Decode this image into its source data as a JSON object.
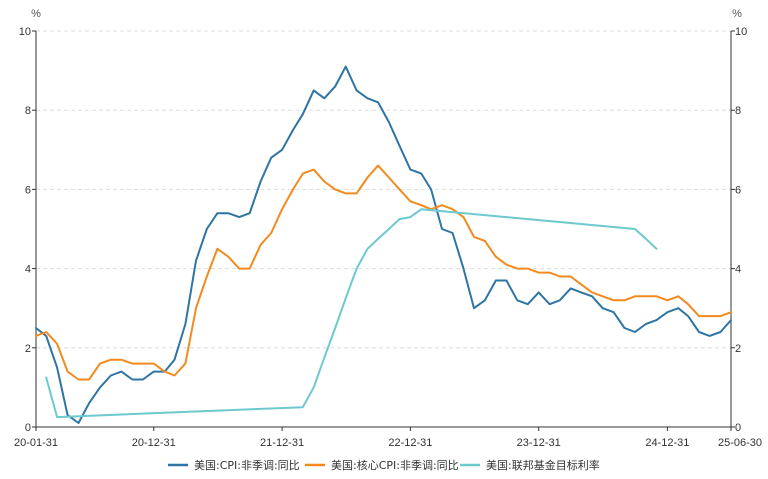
{
  "chart_data": {
    "type": "line",
    "title": "",
    "left_unit": "%",
    "right_unit": "%",
    "ylim": [
      0,
      10
    ],
    "y_ticks": [
      0,
      2,
      4,
      6,
      8,
      10
    ],
    "grid": "horizontal dashed",
    "legend_position": "bottom",
    "x_tick_labels": [
      "20-01-31",
      "20-12-31",
      "21-12-31",
      "22-12-31",
      "23-12-31",
      "24-12-31",
      "25-06-30"
    ],
    "x_tick_dates": [
      "2020-01-31",
      "2020-12-31",
      "2021-12-31",
      "2022-12-31",
      "2023-12-31",
      "2024-12-31",
      "2025-06-30"
    ],
    "series": [
      {
        "name": "美国:CPI:非季调:同比",
        "color": "#2e75a3",
        "points": [
          [
            "2020-01-31",
            2.5
          ],
          [
            "2020-02-29",
            2.3
          ],
          [
            "2020-03-31",
            1.5
          ],
          [
            "2020-04-30",
            0.3
          ],
          [
            "2020-05-31",
            0.1
          ],
          [
            "2020-06-30",
            0.6
          ],
          [
            "2020-07-31",
            1.0
          ],
          [
            "2020-08-31",
            1.3
          ],
          [
            "2020-09-30",
            1.4
          ],
          [
            "2020-10-31",
            1.2
          ],
          [
            "2020-11-30",
            1.2
          ],
          [
            "2020-12-31",
            1.4
          ],
          [
            "2021-01-31",
            1.4
          ],
          [
            "2021-02-28",
            1.7
          ],
          [
            "2021-03-31",
            2.6
          ],
          [
            "2021-04-30",
            4.2
          ],
          [
            "2021-05-31",
            5.0
          ],
          [
            "2021-06-30",
            5.4
          ],
          [
            "2021-07-31",
            5.4
          ],
          [
            "2021-08-31",
            5.3
          ],
          [
            "2021-09-30",
            5.4
          ],
          [
            "2021-10-31",
            6.2
          ],
          [
            "2021-11-30",
            6.8
          ],
          [
            "2021-12-31",
            7.0
          ],
          [
            "2022-01-31",
            7.5
          ],
          [
            "2022-02-28",
            7.9
          ],
          [
            "2022-03-31",
            8.5
          ],
          [
            "2022-04-30",
            8.3
          ],
          [
            "2022-05-31",
            8.6
          ],
          [
            "2022-06-30",
            9.1
          ],
          [
            "2022-07-31",
            8.5
          ],
          [
            "2022-08-31",
            8.3
          ],
          [
            "2022-09-30",
            8.2
          ],
          [
            "2022-10-31",
            7.7
          ],
          [
            "2022-11-30",
            7.1
          ],
          [
            "2022-12-31",
            6.5
          ],
          [
            "2023-01-31",
            6.4
          ],
          [
            "2023-02-28",
            6.0
          ],
          [
            "2023-03-31",
            5.0
          ],
          [
            "2023-04-30",
            4.9
          ],
          [
            "2023-05-31",
            4.0
          ],
          [
            "2023-06-30",
            3.0
          ],
          [
            "2023-07-31",
            3.2
          ],
          [
            "2023-08-31",
            3.7
          ],
          [
            "2023-09-30",
            3.7
          ],
          [
            "2023-10-31",
            3.2
          ],
          [
            "2023-11-30",
            3.1
          ],
          [
            "2023-12-31",
            3.4
          ],
          [
            "2024-01-31",
            3.1
          ],
          [
            "2024-02-29",
            3.2
          ],
          [
            "2024-03-31",
            3.5
          ],
          [
            "2024-04-30",
            3.4
          ],
          [
            "2024-05-31",
            3.3
          ],
          [
            "2024-06-30",
            3.0
          ],
          [
            "2024-07-31",
            2.9
          ],
          [
            "2024-08-31",
            2.5
          ],
          [
            "2024-09-30",
            2.4
          ],
          [
            "2024-10-31",
            2.6
          ],
          [
            "2024-11-30",
            2.7
          ],
          [
            "2024-12-31",
            2.9
          ],
          [
            "2025-01-31",
            3.0
          ],
          [
            "2025-02-28",
            2.8
          ],
          [
            "2025-03-31",
            2.4
          ],
          [
            "2025-04-30",
            2.3
          ],
          [
            "2025-05-31",
            2.4
          ],
          [
            "2025-06-30",
            2.7
          ]
        ]
      },
      {
        "name": "美国:核心CPI:非季调:同比",
        "color": "#f28a1e",
        "points": [
          [
            "2020-01-31",
            2.3
          ],
          [
            "2020-02-29",
            2.4
          ],
          [
            "2020-03-31",
            2.1
          ],
          [
            "2020-04-30",
            1.4
          ],
          [
            "2020-05-31",
            1.2
          ],
          [
            "2020-06-30",
            1.2
          ],
          [
            "2020-07-31",
            1.6
          ],
          [
            "2020-08-31",
            1.7
          ],
          [
            "2020-09-30",
            1.7
          ],
          [
            "2020-10-31",
            1.6
          ],
          [
            "2020-11-30",
            1.6
          ],
          [
            "2020-12-31",
            1.6
          ],
          [
            "2021-01-31",
            1.4
          ],
          [
            "2021-02-28",
            1.3
          ],
          [
            "2021-03-31",
            1.6
          ],
          [
            "2021-04-30",
            3.0
          ],
          [
            "2021-05-31",
            3.8
          ],
          [
            "2021-06-30",
            4.5
          ],
          [
            "2021-07-31",
            4.3
          ],
          [
            "2021-08-31",
            4.0
          ],
          [
            "2021-09-30",
            4.0
          ],
          [
            "2021-10-31",
            4.6
          ],
          [
            "2021-11-30",
            4.9
          ],
          [
            "2021-12-31",
            5.5
          ],
          [
            "2022-01-31",
            6.0
          ],
          [
            "2022-02-28",
            6.4
          ],
          [
            "2022-03-31",
            6.5
          ],
          [
            "2022-04-30",
            6.2
          ],
          [
            "2022-05-31",
            6.0
          ],
          [
            "2022-06-30",
            5.9
          ],
          [
            "2022-07-31",
            5.9
          ],
          [
            "2022-08-31",
            6.3
          ],
          [
            "2022-09-30",
            6.6
          ],
          [
            "2022-10-31",
            6.3
          ],
          [
            "2022-11-30",
            6.0
          ],
          [
            "2022-12-31",
            5.7
          ],
          [
            "2023-01-31",
            5.6
          ],
          [
            "2023-02-28",
            5.5
          ],
          [
            "2023-03-31",
            5.6
          ],
          [
            "2023-04-30",
            5.5
          ],
          [
            "2023-05-31",
            5.3
          ],
          [
            "2023-06-30",
            4.8
          ],
          [
            "2023-07-31",
            4.7
          ],
          [
            "2023-08-31",
            4.3
          ],
          [
            "2023-09-30",
            4.1
          ],
          [
            "2023-10-31",
            4.0
          ],
          [
            "2023-11-30",
            4.0
          ],
          [
            "2023-12-31",
            3.9
          ],
          [
            "2024-01-31",
            3.9
          ],
          [
            "2024-02-29",
            3.8
          ],
          [
            "2024-03-31",
            3.8
          ],
          [
            "2024-04-30",
            3.6
          ],
          [
            "2024-05-31",
            3.4
          ],
          [
            "2024-06-30",
            3.3
          ],
          [
            "2024-07-31",
            3.2
          ],
          [
            "2024-08-31",
            3.2
          ],
          [
            "2024-09-30",
            3.3
          ],
          [
            "2024-10-31",
            3.3
          ],
          [
            "2024-11-30",
            3.3
          ],
          [
            "2024-12-31",
            3.2
          ],
          [
            "2025-01-31",
            3.3
          ],
          [
            "2025-02-28",
            3.1
          ],
          [
            "2025-03-31",
            2.8
          ],
          [
            "2025-04-30",
            2.8
          ],
          [
            "2025-05-31",
            2.8
          ],
          [
            "2025-06-30",
            2.9
          ]
        ]
      },
      {
        "name": "美国:联邦基金目标利率",
        "color": "#6cc9cd",
        "points": [
          [
            "2020-02-29",
            1.25
          ],
          [
            "2020-03-31",
            0.25
          ],
          [
            "2022-02-28",
            0.5
          ],
          [
            "2022-03-31",
            1.0
          ],
          [
            "2022-04-30",
            1.75
          ],
          [
            "2022-05-31",
            2.5
          ],
          [
            "2022-06-30",
            3.25
          ],
          [
            "2022-07-31",
            4.0
          ],
          [
            "2022-08-31",
            4.5
          ],
          [
            "2022-09-30",
            4.75
          ],
          [
            "2022-10-31",
            5.0
          ],
          [
            "2022-11-30",
            5.25
          ],
          [
            "2022-12-31",
            5.3
          ],
          [
            "2023-01-31",
            5.5
          ],
          [
            "2024-09-30",
            5.0
          ],
          [
            "2024-10-31",
            4.75
          ],
          [
            "2024-11-30",
            4.5
          ]
        ]
      }
    ]
  }
}
